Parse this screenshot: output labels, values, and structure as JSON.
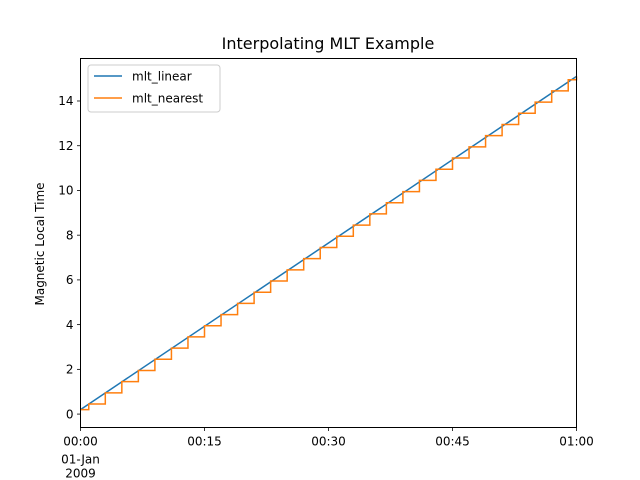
{
  "chart_data": {
    "type": "line",
    "title": "Interpolating MLT Example",
    "xlabel": "",
    "ylabel": "Magnetic Local Time",
    "xlim": [
      "2009-01-01 00:00",
      "2009-01-01 01:00"
    ],
    "ylim": [
      -0.6,
      15.9
    ],
    "x_ticks": [
      {
        "label": "00:00",
        "sublabels": [
          "01-Jan",
          "2009"
        ]
      },
      {
        "label": "00:15",
        "sublabels": []
      },
      {
        "label": "00:30",
        "sublabels": []
      },
      {
        "label": "00:45",
        "sublabels": []
      },
      {
        "label": "01:00",
        "sublabels": []
      }
    ],
    "y_ticks": [
      "0",
      "2",
      "4",
      "6",
      "8",
      "10",
      "12",
      "14"
    ],
    "legend": {
      "position": "top-left"
    },
    "grid": false,
    "series": [
      {
        "name": "mlt_linear",
        "color": "#1f77b4",
        "style": "line",
        "x": [
          "2009-01-01 00:00",
          "2009-01-01 01:00"
        ],
        "y": [
          0.2,
          15.1
        ]
      },
      {
        "name": "mlt_nearest",
        "color": "#ff7f0e",
        "style": "steps",
        "x": [
          "2009-01-01 00:00",
          "2009-01-01 00:01",
          "2009-01-01 00:03",
          "2009-01-01 00:05",
          "2009-01-01 00:07",
          "2009-01-01 00:09",
          "2009-01-01 00:11",
          "2009-01-01 00:13",
          "2009-01-01 00:15",
          "2009-01-01 00:17",
          "2009-01-01 00:19",
          "2009-01-01 00:21",
          "2009-01-01 00:23",
          "2009-01-01 00:25",
          "2009-01-01 00:27",
          "2009-01-01 00:29",
          "2009-01-01 00:31",
          "2009-01-01 00:33",
          "2009-01-01 00:35",
          "2009-01-01 00:37",
          "2009-01-01 00:39",
          "2009-01-01 00:41",
          "2009-01-01 00:43",
          "2009-01-01 00:45",
          "2009-01-01 00:47",
          "2009-01-01 00:49",
          "2009-01-01 00:51",
          "2009-01-01 00:53",
          "2009-01-01 00:55",
          "2009-01-01 00:57",
          "2009-01-01 00:59",
          "2009-01-01 01:00"
        ],
        "y": [
          0.2,
          0.45,
          0.95,
          1.45,
          1.95,
          2.45,
          2.95,
          3.45,
          3.95,
          4.45,
          4.95,
          5.45,
          5.95,
          6.45,
          6.95,
          7.45,
          7.95,
          8.45,
          8.95,
          9.45,
          9.95,
          10.45,
          10.95,
          11.45,
          11.95,
          12.45,
          12.95,
          13.45,
          13.95,
          14.45,
          14.95,
          15.1
        ]
      }
    ]
  }
}
